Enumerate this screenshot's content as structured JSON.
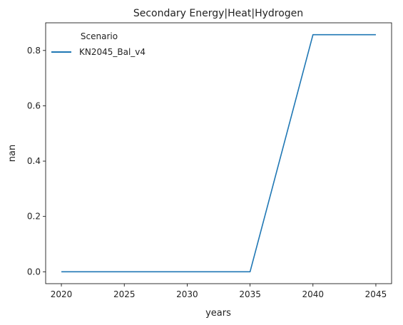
{
  "chart_data": {
    "type": "line",
    "title": "Secondary Energy|Heat|Hydrogen",
    "xlabel": "years",
    "ylabel": "nan",
    "x": [
      2020,
      2025,
      2030,
      2035,
      2040,
      2045
    ],
    "series": [
      {
        "name": "KN2045_Bal_v4",
        "values": [
          0.0,
          0.0,
          0.0,
          0.0,
          0.857,
          0.857
        ],
        "color": "#1f77b4"
      }
    ],
    "xticks": [
      2020,
      2025,
      2030,
      2035,
      2040,
      2045
    ],
    "xtick_labels": [
      "2020",
      "2025",
      "2030",
      "2035",
      "2040",
      "2045"
    ],
    "yticks": [
      0.0,
      0.2,
      0.4,
      0.6,
      0.8
    ],
    "ytick_labels": [
      "0.0",
      "0.2",
      "0.4",
      "0.6",
      "0.8"
    ],
    "xlim": [
      2018.75,
      2046.25
    ],
    "ylim": [
      -0.043,
      0.9
    ],
    "grid": false,
    "legend": {
      "title": "Scenario",
      "placement": "upper left"
    }
  }
}
